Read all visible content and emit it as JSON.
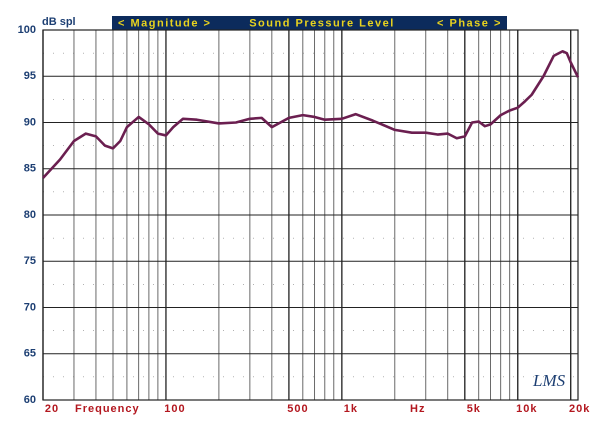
{
  "chart_data": {
    "type": "line",
    "title": "Sound Pressure Level",
    "annotations": [
      "< Magnitude >",
      "< Phase >",
      "LMS"
    ],
    "y_label": "dB spl",
    "x_labels": [
      "Frequency",
      "Hz"
    ],
    "x": [
      20,
      25,
      30,
      35,
      40,
      45,
      50,
      55,
      60,
      70,
      80,
      90,
      100,
      110,
      125,
      150,
      200,
      250,
      300,
      350,
      400,
      500,
      600,
      700,
      800,
      1000,
      1200,
      1500,
      2000,
      2500,
      3000,
      3500,
      4000,
      4500,
      5000,
      5500,
      6000,
      6500,
      7000,
      8000,
      9000,
      10000,
      11000,
      12000,
      14000,
      16000,
      18000,
      19000,
      20000,
      22000
    ],
    "series": [
      {
        "name": "SPL",
        "color": "#6b1f50",
        "values": [
          84,
          86,
          88,
          88.8,
          88.5,
          87.5,
          87.2,
          88,
          89.5,
          90.6,
          89.8,
          88.8,
          88.6,
          89.5,
          90.4,
          90.3,
          89.9,
          90,
          90.4,
          90.5,
          89.5,
          90.5,
          90.8,
          90.6,
          90.3,
          90.4,
          90.9,
          90.2,
          89.2,
          88.9,
          88.9,
          88.7,
          88.8,
          88.3,
          88.5,
          90,
          90.1,
          89.6,
          89.8,
          90.8,
          91.3,
          91.6,
          92.3,
          93,
          95,
          97.2,
          97.7,
          97.5,
          96.5,
          94.9
        ]
      }
    ],
    "xlim": [
      20,
      22000
    ],
    "ylim": [
      60,
      100
    ],
    "log_x": true,
    "minor_grid": true,
    "yticks": [
      60,
      65,
      70,
      75,
      80,
      85,
      90,
      95,
      100
    ],
    "xticks": [
      20,
      100,
      500,
      {
        "value": 1000,
        "label": "1k"
      },
      {
        "value": 5000,
        "label": "5k"
      },
      {
        "value": 10000,
        "label": "10k"
      },
      {
        "value": 20000,
        "label": "20k"
      }
    ],
    "grid": true
  }
}
